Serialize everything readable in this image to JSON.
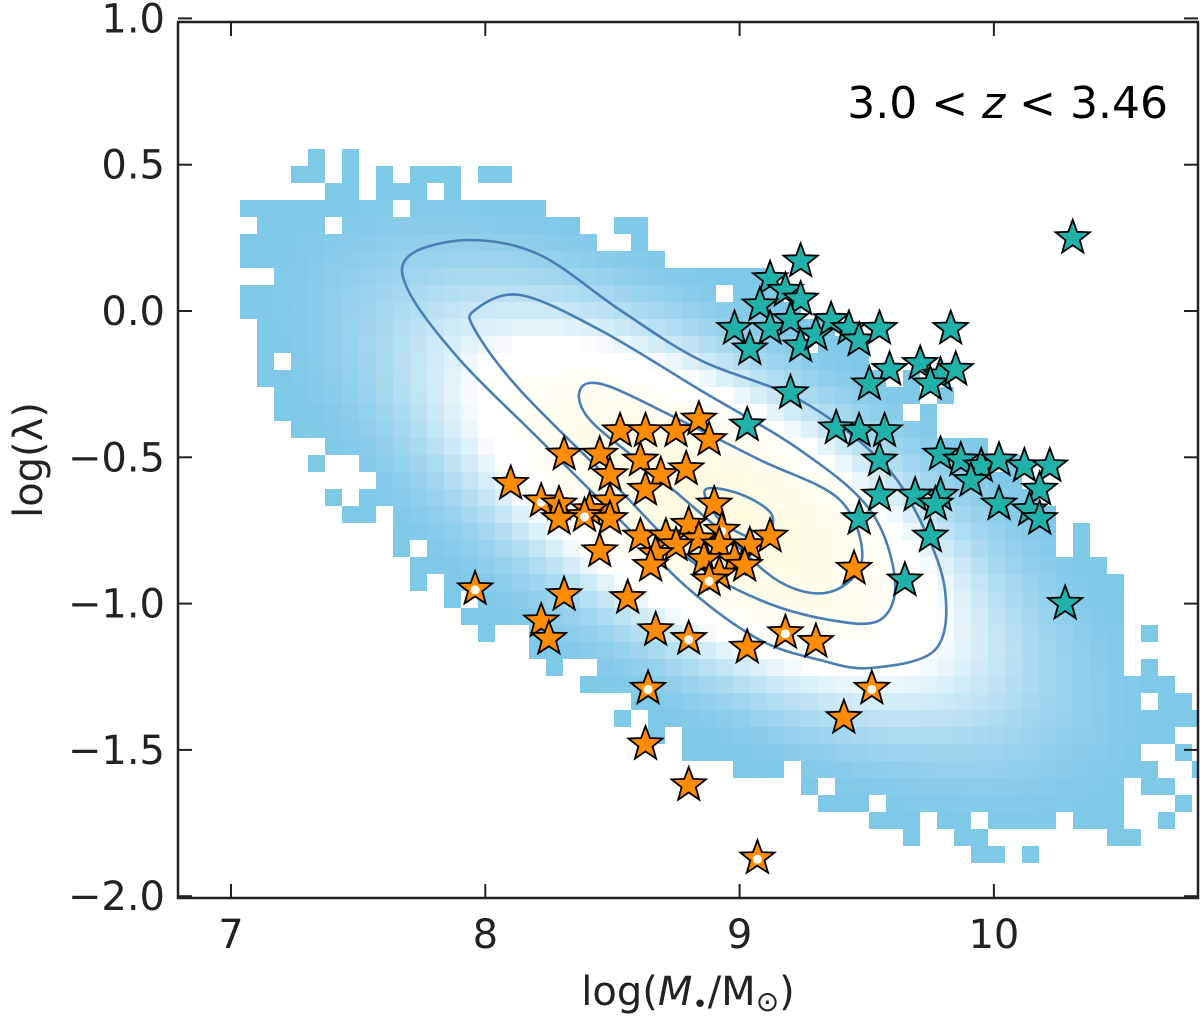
{
  "chart_data": {
    "type": "scatter",
    "title": "",
    "annotation": {
      "prefix": "3.0 < ",
      "var": "z",
      "suffix": " < 3.46"
    },
    "xlabel": {
      "pre": "log(",
      "var": "M",
      "sub": "•",
      "post": "/M",
      "sun": "⊙",
      "close": ")"
    },
    "ylabel": "log(λ)",
    "xlim": [
      6.79,
      10.8
    ],
    "ylim": [
      -2.0,
      1.0
    ],
    "xticks": [
      7,
      8,
      9,
      10
    ],
    "xtick_labels": [
      "7",
      "8",
      "9",
      "10"
    ],
    "yticks": [
      1.0,
      0.5,
      0.0,
      -0.5,
      -1.0,
      -1.5,
      -2.0
    ],
    "ytick_labels": [
      "1.0",
      "0.5",
      "0.0",
      "−0.5",
      "−1.0",
      "−1.5",
      "−2.0"
    ],
    "grid": false,
    "background": {
      "type": "2d-histogram",
      "colors": {
        "low": "#7ec8e8",
        "mid": "#ffffff",
        "high": "#fffbe0"
      },
      "contour_color": "#4a7fb5",
      "contour_levels": 4
    },
    "series": [
      {
        "marker": "star",
        "color": "#20b2aa",
        "points": [
          [
            10.31,
            0.25
          ],
          [
            9.24,
            0.17
          ],
          [
            9.12,
            0.11
          ],
          [
            9.18,
            0.07
          ],
          [
            9.24,
            0.04
          ],
          [
            9.08,
            0.02
          ],
          [
            8.98,
            -0.06
          ],
          [
            9.04,
            -0.13
          ],
          [
            9.12,
            -0.06
          ],
          [
            9.2,
            -0.03
          ],
          [
            9.24,
            -0.12
          ],
          [
            9.3,
            -0.08
          ],
          [
            9.36,
            -0.03
          ],
          [
            9.43,
            -0.06
          ],
          [
            9.47,
            -0.1
          ],
          [
            9.55,
            -0.06
          ],
          [
            9.83,
            -0.06
          ],
          [
            9.59,
            -0.2
          ],
          [
            9.71,
            -0.18
          ],
          [
            9.79,
            -0.22
          ],
          [
            9.75,
            -0.25
          ],
          [
            9.85,
            -0.2
          ],
          [
            9.2,
            -0.28
          ],
          [
            9.03,
            -0.39
          ],
          [
            9.38,
            -0.4
          ],
          [
            9.47,
            -0.41
          ],
          [
            9.51,
            -0.25
          ],
          [
            9.57,
            -0.41
          ],
          [
            9.55,
            -0.51
          ],
          [
            9.79,
            -0.49
          ],
          [
            9.87,
            -0.51
          ],
          [
            9.95,
            -0.53
          ],
          [
            10.02,
            -0.51
          ],
          [
            10.12,
            -0.53
          ],
          [
            10.22,
            -0.53
          ],
          [
            10.18,
            -0.61
          ],
          [
            10.02,
            -0.66
          ],
          [
            9.91,
            -0.58
          ],
          [
            9.79,
            -0.63
          ],
          [
            9.69,
            -0.63
          ],
          [
            9.77,
            -0.66
          ],
          [
            9.55,
            -0.63
          ],
          [
            9.47,
            -0.71
          ],
          [
            9.75,
            -0.77
          ],
          [
            10.14,
            -0.68
          ],
          [
            10.18,
            -0.71
          ],
          [
            9.65,
            -0.92
          ],
          [
            10.28,
            -1.0
          ]
        ]
      },
      {
        "marker": "star",
        "color": "#ff8c00",
        "points": [
          [
            8.1,
            -0.59,
            0
          ],
          [
            8.22,
            -0.65,
            1
          ],
          [
            8.29,
            -0.66,
            0
          ],
          [
            8.31,
            -0.49,
            0
          ],
          [
            8.45,
            -0.49,
            0
          ],
          [
            8.53,
            -0.41,
            0
          ],
          [
            8.63,
            -0.41,
            0
          ],
          [
            8.75,
            -0.41,
            0
          ],
          [
            8.84,
            -0.37,
            0
          ],
          [
            8.88,
            -0.44,
            0
          ],
          [
            8.61,
            -0.51,
            0
          ],
          [
            8.49,
            -0.56,
            0
          ],
          [
            8.69,
            -0.56,
            0
          ],
          [
            8.79,
            -0.54,
            0
          ],
          [
            8.63,
            -0.61,
            0
          ],
          [
            8.49,
            -0.65,
            0
          ],
          [
            8.41,
            -0.68,
            0
          ],
          [
            8.39,
            -0.7,
            1
          ],
          [
            8.49,
            -0.71,
            0
          ],
          [
            8.29,
            -0.71,
            0
          ],
          [
            8.45,
            -0.82,
            0
          ],
          [
            8.61,
            -0.77,
            0
          ],
          [
            8.71,
            -0.77,
            0
          ],
          [
            8.8,
            -0.73,
            0
          ],
          [
            8.9,
            -0.66,
            0
          ],
          [
            8.93,
            -0.75,
            1
          ],
          [
            8.84,
            -0.78,
            0
          ],
          [
            8.92,
            -0.8,
            0
          ],
          [
            8.98,
            -0.85,
            0
          ],
          [
            9.04,
            -0.8,
            0
          ],
          [
            9.12,
            -0.77,
            0
          ],
          [
            9.02,
            -0.87,
            0
          ],
          [
            8.86,
            -0.85,
            0
          ],
          [
            8.75,
            -0.8,
            0
          ],
          [
            8.67,
            -0.83,
            0
          ],
          [
            8.65,
            -0.87,
            0
          ],
          [
            8.92,
            -0.9,
            0
          ],
          [
            8.88,
            -0.92,
            1
          ],
          [
            7.96,
            -0.95,
            1
          ],
          [
            8.31,
            -0.97,
            0
          ],
          [
            8.22,
            -1.06,
            0
          ],
          [
            8.25,
            -1.12,
            0
          ],
          [
            8.56,
            -0.98,
            0
          ],
          [
            8.67,
            -1.09,
            0
          ],
          [
            8.8,
            -1.12,
            1
          ],
          [
            9.03,
            -1.15,
            0
          ],
          [
            9.18,
            -1.1,
            1
          ],
          [
            9.3,
            -1.13,
            0
          ],
          [
            9.45,
            -0.88,
            0
          ],
          [
            8.64,
            -1.29,
            1
          ],
          [
            9.52,
            -1.29,
            1
          ],
          [
            8.63,
            -1.48,
            0
          ],
          [
            9.41,
            -1.39,
            0
          ],
          [
            8.8,
            -1.62,
            0
          ],
          [
            9.07,
            -1.87,
            1
          ]
        ],
        "dot_color": "#ffffff"
      }
    ]
  }
}
